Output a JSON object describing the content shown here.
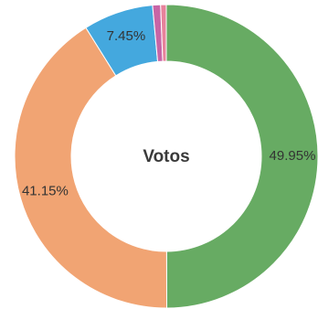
{
  "chart_data": {
    "type": "pie",
    "title": "Votos",
    "donut": true,
    "start_angle_deg": 0,
    "direction": "clockwise",
    "slices": [
      {
        "value": 49.95,
        "label": "49.95%",
        "color": "#67ab63"
      },
      {
        "value": 41.15,
        "label": "41.15%",
        "color": "#f1a473"
      },
      {
        "value": 7.45,
        "label": "7.45%",
        "color": "#44a8de"
      },
      {
        "value": 0.85,
        "label": "",
        "color": "#c765a6"
      },
      {
        "value": 0.6,
        "label": "",
        "color": "#e7829b"
      }
    ]
  }
}
